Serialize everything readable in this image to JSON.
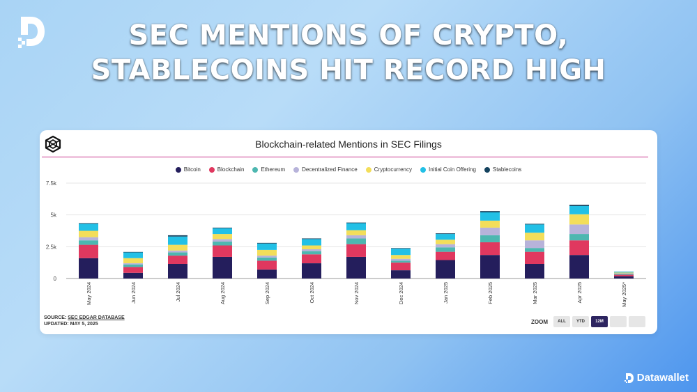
{
  "headline": {
    "line1": "SEC MENTIONS OF CRYPTO,",
    "line2": "STABLECOINS HIT RECORD HIGH"
  },
  "footer": {
    "brand": "Datawallet"
  },
  "source": {
    "label": "SOURCE:",
    "link": "SEC EDGAR DATABASE",
    "updated": "UPDATED: MAY 5, 2025"
  },
  "zoom": {
    "label": "ZOOM",
    "buttons": [
      "ALL",
      "YTD",
      "12M",
      "",
      ""
    ],
    "active": "12M"
  },
  "colors": {
    "Bitcoin": "#241e5c",
    "Blockchain": "#e0385f",
    "Ethereum": "#4db7b0",
    "Decentralized Finance": "#b7b3da",
    "Cryptocurrency": "#f3de5a",
    "Initial Coin Offering": "#22c0e6",
    "Stablecoins": "#14425e"
  },
  "chart_data": {
    "type": "bar",
    "stacked": true,
    "title": "Blockchain-related Mentions in SEC Filings",
    "xlabel": "",
    "ylabel": "",
    "ylim": [
      0,
      7500
    ],
    "yticks": [
      0,
      2500,
      5000,
      7500
    ],
    "ytick_labels": [
      "0",
      "2.5k",
      "5k",
      "7.5k"
    ],
    "legend_position": "top-center",
    "categories": [
      "May 2024",
      "Jun 2024",
      "Jul 2024",
      "Aug 2024",
      "Sep 2024",
      "Oct 2024",
      "Nov 2024",
      "Dec 2024",
      "Jan 2025",
      "Feb 2025",
      "Mar 2025",
      "Apr 2025",
      "May 2025*"
    ],
    "series": [
      {
        "name": "Bitcoin",
        "values": [
          1600,
          450,
          1150,
          1700,
          700,
          1200,
          1700,
          650,
          1450,
          1850,
          1150,
          1850,
          180
        ]
      },
      {
        "name": "Blockchain",
        "values": [
          1050,
          450,
          650,
          900,
          700,
          700,
          1000,
          600,
          650,
          1000,
          950,
          1150,
          120
        ]
      },
      {
        "name": "Ethereum",
        "values": [
          350,
          200,
          250,
          300,
          250,
          250,
          450,
          150,
          350,
          550,
          300,
          500,
          60
        ]
      },
      {
        "name": "Decentralized Finance",
        "values": [
          250,
          100,
          150,
          200,
          150,
          150,
          250,
          150,
          250,
          600,
          600,
          750,
          50
        ]
      },
      {
        "name": "Cryptocurrency",
        "values": [
          500,
          400,
          450,
          400,
          450,
          300,
          400,
          300,
          350,
          550,
          600,
          800,
          60
        ]
      },
      {
        "name": "Initial Coin Offering",
        "values": [
          550,
          450,
          650,
          450,
          500,
          500,
          550,
          500,
          450,
          650,
          650,
          650,
          60
        ]
      },
      {
        "name": "Stablecoins",
        "values": [
          50,
          40,
          100,
          50,
          50,
          50,
          50,
          40,
          50,
          100,
          50,
          100,
          10
        ]
      }
    ]
  }
}
